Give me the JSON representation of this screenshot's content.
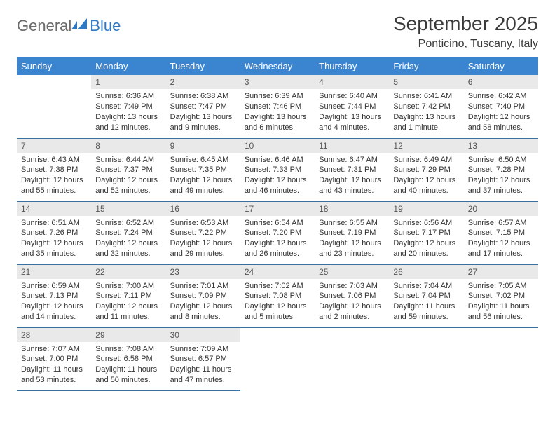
{
  "brand": {
    "text_a": "General",
    "text_b": "Blue",
    "gray": "#6b6b6b",
    "blue": "#2f78c4",
    "mark_color": "#2f78c4"
  },
  "header": {
    "month_title": "September 2025",
    "location": "Ponticino, Tuscany, Italy"
  },
  "styling": {
    "header_bg": "#3b84d0",
    "header_text": "#ffffff",
    "daynum_bg": "#e9e9e9",
    "daynum_text": "#555555",
    "rule_color": "#3b6fa0",
    "body_text": "#333333",
    "page_bg": "#ffffff",
    "title_color": "#3a3a3a",
    "header_fontsize": 13,
    "daynum_fontsize": 12,
    "body_fontsize": 11,
    "title_fontsize": 28,
    "location_fontsize": 16
  },
  "weekdays": [
    "Sunday",
    "Monday",
    "Tuesday",
    "Wednesday",
    "Thursday",
    "Friday",
    "Saturday"
  ],
  "calendar": {
    "leading_blanks": 1,
    "days": [
      {
        "n": 1,
        "sunrise": "6:36 AM",
        "sunset": "7:49 PM",
        "daylight": "13 hours and 12 minutes."
      },
      {
        "n": 2,
        "sunrise": "6:38 AM",
        "sunset": "7:47 PM",
        "daylight": "13 hours and 9 minutes."
      },
      {
        "n": 3,
        "sunrise": "6:39 AM",
        "sunset": "7:46 PM",
        "daylight": "13 hours and 6 minutes."
      },
      {
        "n": 4,
        "sunrise": "6:40 AM",
        "sunset": "7:44 PM",
        "daylight": "13 hours and 4 minutes."
      },
      {
        "n": 5,
        "sunrise": "6:41 AM",
        "sunset": "7:42 PM",
        "daylight": "13 hours and 1 minute."
      },
      {
        "n": 6,
        "sunrise": "6:42 AM",
        "sunset": "7:40 PM",
        "daylight": "12 hours and 58 minutes."
      },
      {
        "n": 7,
        "sunrise": "6:43 AM",
        "sunset": "7:38 PM",
        "daylight": "12 hours and 55 minutes."
      },
      {
        "n": 8,
        "sunrise": "6:44 AM",
        "sunset": "7:37 PM",
        "daylight": "12 hours and 52 minutes."
      },
      {
        "n": 9,
        "sunrise": "6:45 AM",
        "sunset": "7:35 PM",
        "daylight": "12 hours and 49 minutes."
      },
      {
        "n": 10,
        "sunrise": "6:46 AM",
        "sunset": "7:33 PM",
        "daylight": "12 hours and 46 minutes."
      },
      {
        "n": 11,
        "sunrise": "6:47 AM",
        "sunset": "7:31 PM",
        "daylight": "12 hours and 43 minutes."
      },
      {
        "n": 12,
        "sunrise": "6:49 AM",
        "sunset": "7:29 PM",
        "daylight": "12 hours and 40 minutes."
      },
      {
        "n": 13,
        "sunrise": "6:50 AM",
        "sunset": "7:28 PM",
        "daylight": "12 hours and 37 minutes."
      },
      {
        "n": 14,
        "sunrise": "6:51 AM",
        "sunset": "7:26 PM",
        "daylight": "12 hours and 35 minutes."
      },
      {
        "n": 15,
        "sunrise": "6:52 AM",
        "sunset": "7:24 PM",
        "daylight": "12 hours and 32 minutes."
      },
      {
        "n": 16,
        "sunrise": "6:53 AM",
        "sunset": "7:22 PM",
        "daylight": "12 hours and 29 minutes."
      },
      {
        "n": 17,
        "sunrise": "6:54 AM",
        "sunset": "7:20 PM",
        "daylight": "12 hours and 26 minutes."
      },
      {
        "n": 18,
        "sunrise": "6:55 AM",
        "sunset": "7:19 PM",
        "daylight": "12 hours and 23 minutes."
      },
      {
        "n": 19,
        "sunrise": "6:56 AM",
        "sunset": "7:17 PM",
        "daylight": "12 hours and 20 minutes."
      },
      {
        "n": 20,
        "sunrise": "6:57 AM",
        "sunset": "7:15 PM",
        "daylight": "12 hours and 17 minutes."
      },
      {
        "n": 21,
        "sunrise": "6:59 AM",
        "sunset": "7:13 PM",
        "daylight": "12 hours and 14 minutes."
      },
      {
        "n": 22,
        "sunrise": "7:00 AM",
        "sunset": "7:11 PM",
        "daylight": "12 hours and 11 minutes."
      },
      {
        "n": 23,
        "sunrise": "7:01 AM",
        "sunset": "7:09 PM",
        "daylight": "12 hours and 8 minutes."
      },
      {
        "n": 24,
        "sunrise": "7:02 AM",
        "sunset": "7:08 PM",
        "daylight": "12 hours and 5 minutes."
      },
      {
        "n": 25,
        "sunrise": "7:03 AM",
        "sunset": "7:06 PM",
        "daylight": "12 hours and 2 minutes."
      },
      {
        "n": 26,
        "sunrise": "7:04 AM",
        "sunset": "7:04 PM",
        "daylight": "11 hours and 59 minutes."
      },
      {
        "n": 27,
        "sunrise": "7:05 AM",
        "sunset": "7:02 PM",
        "daylight": "11 hours and 56 minutes."
      },
      {
        "n": 28,
        "sunrise": "7:07 AM",
        "sunset": "7:00 PM",
        "daylight": "11 hours and 53 minutes."
      },
      {
        "n": 29,
        "sunrise": "7:08 AM",
        "sunset": "6:58 PM",
        "daylight": "11 hours and 50 minutes."
      },
      {
        "n": 30,
        "sunrise": "7:09 AM",
        "sunset": "6:57 PM",
        "daylight": "11 hours and 47 minutes."
      }
    ]
  },
  "labels": {
    "sunrise": "Sunrise:",
    "sunset": "Sunset:",
    "daylight": "Daylight:"
  }
}
